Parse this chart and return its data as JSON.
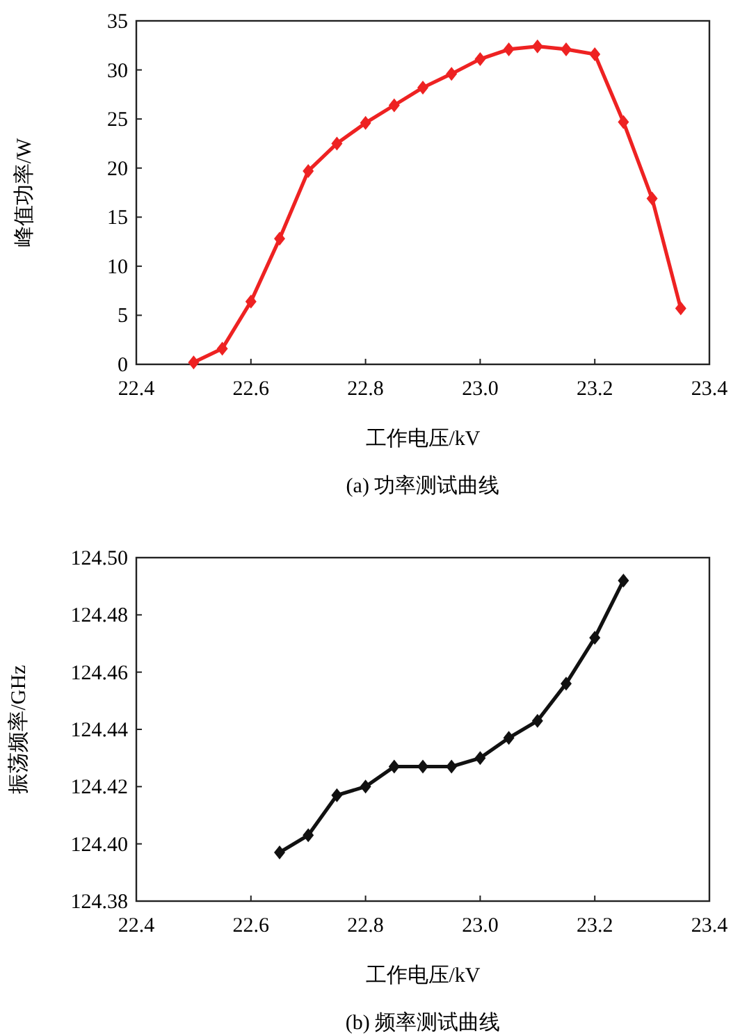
{
  "chart_data": [
    {
      "type": "line",
      "title": "(a) 功率测试曲线",
      "xlabel": "工作电压/kV",
      "ylabel": "峰值功率/W",
      "marker": "diamond",
      "line_style": "solid",
      "x": [
        22.5,
        22.55,
        22.6,
        22.65,
        22.7,
        22.75,
        22.8,
        22.85,
        22.9,
        22.95,
        23.0,
        23.05,
        23.1,
        23.15,
        23.2,
        23.25,
        23.3,
        23.35
      ],
      "series": [
        {
          "color": "#ee2222",
          "values": [
            0.2,
            1.6,
            6.4,
            12.8,
            19.7,
            22.5,
            24.6,
            26.4,
            28.2,
            29.6,
            31.1,
            32.1,
            32.4,
            32.1,
            31.6,
            24.7,
            16.9,
            5.7
          ]
        }
      ],
      "xlim": [
        22.4,
        23.4
      ],
      "xticks": [
        22.4,
        22.6,
        22.8,
        {
          "value": 23,
          "label": "23.0"
        },
        23.2,
        23.4
      ],
      "ylim": [
        0,
        35
      ],
      "yticks": [
        0,
        5,
        10,
        15,
        20,
        25,
        30,
        35
      ]
    },
    {
      "type": "line",
      "title": "(b) 频率测试曲线",
      "xlabel": "工作电压/kV",
      "ylabel": "振荡频率/GHz",
      "marker": "diamond",
      "line_style": "solid",
      "x": [
        22.65,
        22.7,
        22.75,
        22.8,
        22.85,
        22.9,
        22.95,
        23.0,
        23.05,
        23.1,
        23.15,
        23.2,
        23.25
      ],
      "series": [
        {
          "color": "#111111",
          "values": [
            124.397,
            124.403,
            124.417,
            124.42,
            124.427,
            124.427,
            124.427,
            124.43,
            124.437,
            124.443,
            124.456,
            124.472,
            124.492
          ]
        }
      ],
      "xlim": [
        22.4,
        23.4
      ],
      "xticks": [
        22.4,
        22.6,
        22.8,
        {
          "value": 23,
          "label": "23.0"
        },
        23.2,
        23.4
      ],
      "ylim": [
        124.38,
        124.5
      ],
      "yticks": [
        {
          "value": 124.38,
          "label": "124.38"
        },
        {
          "value": 124.4,
          "label": "124.40"
        },
        {
          "value": 124.42,
          "label": "124.42"
        },
        {
          "value": 124.44,
          "label": "124.44"
        },
        {
          "value": 124.46,
          "label": "124.46"
        },
        {
          "value": 124.48,
          "label": "124.48"
        },
        {
          "value": 124.5,
          "label": "124.50"
        }
      ]
    }
  ]
}
